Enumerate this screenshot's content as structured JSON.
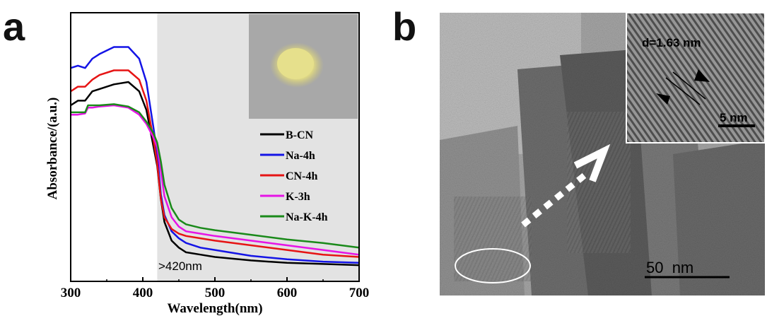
{
  "panels": {
    "a": "a",
    "b": "b"
  },
  "colors": {
    "shade": "#e3e3e3",
    "photo_bg": "#a8a8a8",
    "powder": "#e6e08c",
    "axis": "#000000"
  },
  "chart_data": {
    "type": "line",
    "xlabel": "Wavelength(nm)",
    "ylabel": "Absorbance/(a.u.)",
    "xlim": [
      300,
      700
    ],
    "xticks": [
      300,
      400,
      500,
      600,
      700
    ],
    "ylim": [
      0,
      1
    ],
    "shaded_region": {
      "from": 420,
      "to": 700,
      "label": ">420nm"
    },
    "legend_position": "right-center",
    "inset": "powder-photo",
    "grid": false,
    "series": [
      {
        "name": "B-CN",
        "color": "#000000",
        "x": [
          300,
          310,
          320,
          330,
          340,
          360,
          380,
          395,
          405,
          415,
          420,
          425,
          430,
          440,
          450,
          460,
          480,
          500,
          550,
          600,
          650,
          700
        ],
        "y": [
          0.7,
          0.72,
          0.72,
          0.76,
          0.77,
          0.79,
          0.8,
          0.76,
          0.68,
          0.52,
          0.44,
          0.3,
          0.2,
          0.12,
          0.09,
          0.07,
          0.06,
          0.05,
          0.035,
          0.025,
          0.02,
          0.015
        ]
      },
      {
        "name": "Na-4h",
        "color": "#1414e6",
        "x": [
          300,
          310,
          320,
          330,
          340,
          360,
          380,
          395,
          405,
          415,
          420,
          425,
          430,
          440,
          450,
          460,
          480,
          500,
          550,
          600,
          650,
          700
        ],
        "y": [
          0.86,
          0.87,
          0.86,
          0.9,
          0.92,
          0.95,
          0.95,
          0.9,
          0.8,
          0.6,
          0.49,
          0.32,
          0.23,
          0.16,
          0.13,
          0.11,
          0.09,
          0.08,
          0.055,
          0.04,
          0.03,
          0.025
        ]
      },
      {
        "name": "CN-4h",
        "color": "#e61414",
        "x": [
          300,
          310,
          320,
          330,
          340,
          360,
          380,
          395,
          405,
          415,
          420,
          425,
          430,
          440,
          450,
          460,
          480,
          500,
          550,
          600,
          650,
          700
        ],
        "y": [
          0.76,
          0.78,
          0.78,
          0.81,
          0.83,
          0.85,
          0.85,
          0.81,
          0.72,
          0.55,
          0.45,
          0.3,
          0.22,
          0.17,
          0.15,
          0.14,
          0.13,
          0.12,
          0.1,
          0.08,
          0.06,
          0.05
        ]
      },
      {
        "name": "K-3h",
        "color": "#e614e6",
        "x": [
          300,
          310,
          320,
          324,
          330,
          340,
          360,
          380,
          395,
          405,
          415,
          420,
          425,
          430,
          440,
          450,
          460,
          480,
          500,
          550,
          600,
          650,
          700
        ],
        "y": [
          0.66,
          0.66,
          0.665,
          0.69,
          0.69,
          0.695,
          0.7,
          0.69,
          0.66,
          0.62,
          0.56,
          0.52,
          0.42,
          0.31,
          0.22,
          0.18,
          0.16,
          0.15,
          0.14,
          0.12,
          0.1,
          0.08,
          0.06
        ]
      },
      {
        "name": "Na-K-4h",
        "color": "#1a8a1a",
        "x": [
          300,
          310,
          320,
          324,
          330,
          340,
          360,
          380,
          395,
          405,
          415,
          420,
          425,
          430,
          440,
          450,
          460,
          480,
          500,
          550,
          600,
          650,
          700
        ],
        "y": [
          0.67,
          0.67,
          0.67,
          0.7,
          0.7,
          0.7,
          0.705,
          0.695,
          0.67,
          0.63,
          0.58,
          0.54,
          0.46,
          0.36,
          0.26,
          0.21,
          0.19,
          0.175,
          0.165,
          0.145,
          0.125,
          0.11,
          0.09
        ]
      }
    ]
  },
  "tem": {
    "inset_label": "d=1.63 nm",
    "inset_scale": "5 nm",
    "main_scale": "50  nm"
  }
}
